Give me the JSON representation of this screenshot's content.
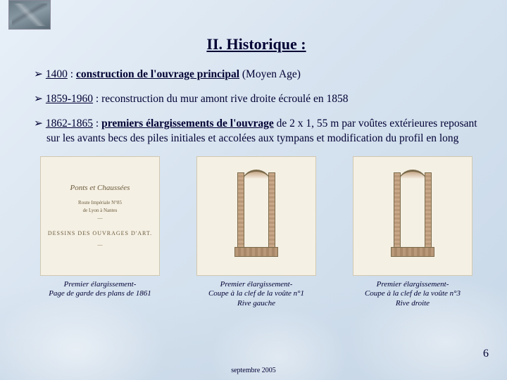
{
  "title": "II. Historique :",
  "bullets": {
    "b1_year": "1400",
    "b1_main": "construction de l'ouvrage principal",
    "b1_tail": " (Moyen Age)",
    "b2_year": "1859-1960",
    "b2_text": " : reconstruction du mur amont rive droite écroulé en 1858",
    "b3_year": "1862-1865",
    "b3_main": "premiers élargissements de l'ouvrage",
    "b3_tail": " de 2 x 1, 55 m par voûtes extérieures reposant sur les avants becs des piles initiales et accolées aux tympans et modification du profil en long"
  },
  "doc": {
    "line1": "Ponts et Chaussées",
    "line2": "Route Impériale N°85",
    "line3": "de Lyon à Nantes",
    "line4": "DESSINS DES OUVRAGES D'ART."
  },
  "captions": {
    "c1a": "Premier élargissement-",
    "c1b": "Page de garde des plans de 1861",
    "c2a": "Premier élargissement-",
    "c2b": "Coupe à la clef de la voûte n°1",
    "c2c": "Rive gauche",
    "c3a": "Premier élargissement-",
    "c3b": "Coupe à la clef de la voûte n°3",
    "c3c": "Rive droite"
  },
  "page_number": "6",
  "footer_date": "septembre 2005",
  "colors": {
    "text": "#000033",
    "bg_light": "#e8f0f8",
    "bg_dark": "#c8d8e8",
    "paper": "#f5f0e4"
  }
}
